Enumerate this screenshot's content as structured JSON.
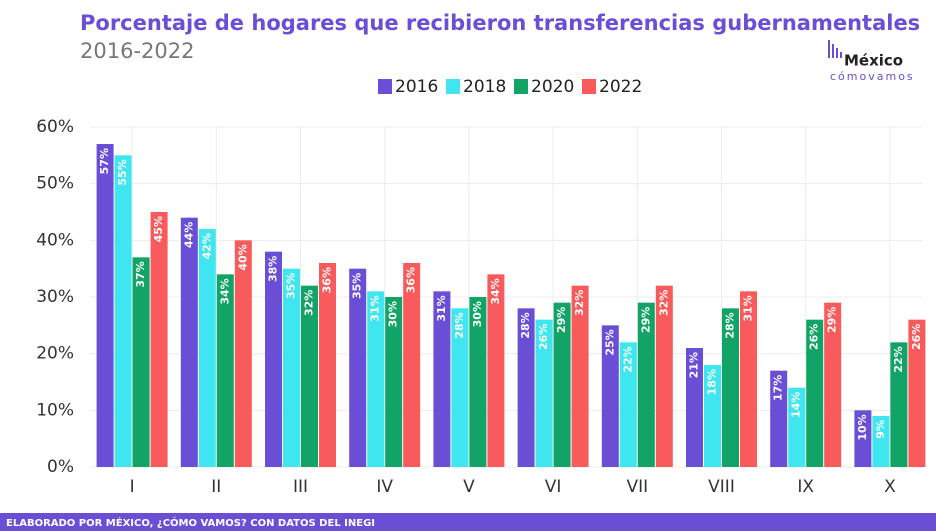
{
  "chart_data": {
    "type": "bar",
    "title": "Porcentaje de hogares que recibieron transferencias gubernamentales",
    "subtitle": "2016-2022",
    "logo": {
      "name": "México",
      "tagline": "cómovamos"
    },
    "footer": "ELABORADO POR MÉXICO, ¿CÓMO VAMOS? CON DATOS DEL INEGI",
    "categories": [
      "I",
      "II",
      "III",
      "IV",
      "V",
      "VI",
      "VII",
      "VIII",
      "IX",
      "X"
    ],
    "series": [
      {
        "name": "2016",
        "color": "#6a4fd6",
        "values": [
          57,
          44,
          38,
          35,
          31,
          28,
          25,
          21,
          17,
          10
        ],
        "value_labels": [
          "57%",
          "44%",
          "38%",
          "35%",
          "31%",
          "28%",
          "25%",
          "21%",
          "17%",
          "10%"
        ]
      },
      {
        "name": "2018",
        "color": "#3fe6ef",
        "values": [
          55,
          42,
          35,
          31,
          28,
          26,
          22,
          18,
          14,
          9
        ],
        "value_labels": [
          "55%",
          "42%",
          "35%",
          "31%",
          "28%",
          "26%",
          "22%",
          "18%",
          "14%",
          "9%"
        ]
      },
      {
        "name": "2020",
        "color": "#12a466",
        "values": [
          37,
          34,
          32,
          30,
          30,
          29,
          29,
          28,
          26,
          22
        ],
        "value_labels": [
          "37%",
          "34%",
          "32%",
          "30%",
          "30%",
          "29%",
          "29%",
          "28%",
          "26%",
          "22%"
        ]
      },
      {
        "name": "2022",
        "color": "#f95a5b",
        "values": [
          45,
          40,
          36,
          36,
          34,
          32,
          32,
          31,
          29,
          26
        ],
        "value_labels": [
          "45%",
          "40%",
          "36%",
          "36%",
          "34%",
          "32%",
          "32%",
          "31%",
          "29%",
          "26%"
        ]
      }
    ],
    "ylim": [
      0,
      60
    ],
    "yticks": [
      {
        "value": 0,
        "label": "0%"
      },
      {
        "value": 10,
        "label": "10%"
      },
      {
        "value": 20,
        "label": "20%"
      },
      {
        "value": 30,
        "label": "30%"
      },
      {
        "value": 40,
        "label": "40%"
      },
      {
        "value": 50,
        "label": "50%"
      },
      {
        "value": 60,
        "label": "60%"
      }
    ],
    "grid": true
  }
}
